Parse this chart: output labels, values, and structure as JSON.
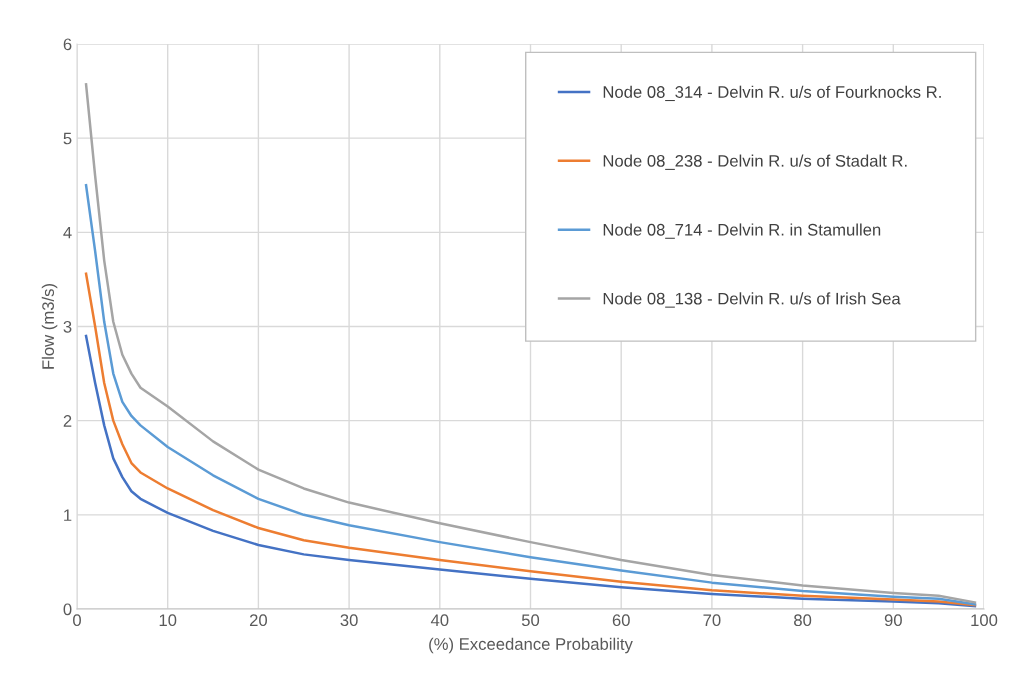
{
  "chart_data": {
    "type": "line",
    "xlabel": "(%) Exceedance Probability",
    "ylabel": "Flow (m3/s)",
    "x": [
      1,
      2,
      3,
      4,
      5,
      6,
      7,
      10,
      15,
      20,
      25,
      30,
      40,
      50,
      60,
      70,
      80,
      90,
      95,
      99
    ],
    "series": [
      {
        "name": "Node 08_314 - Delvin R. u/s of Fourknocks R.",
        "color": "#4472c4",
        "values": [
          2.9,
          2.4,
          1.95,
          1.6,
          1.4,
          1.25,
          1.17,
          1.02,
          0.83,
          0.68,
          0.58,
          0.52,
          0.42,
          0.32,
          0.23,
          0.16,
          0.11,
          0.08,
          0.06,
          0.03
        ]
      },
      {
        "name": "Node 08_238 - Delvin R. u/s of Stadalt R.",
        "color": "#ed7d31",
        "values": [
          3.56,
          3.0,
          2.4,
          2.0,
          1.75,
          1.55,
          1.45,
          1.28,
          1.05,
          0.86,
          0.73,
          0.65,
          0.52,
          0.4,
          0.29,
          0.2,
          0.14,
          0.1,
          0.08,
          0.04
        ]
      },
      {
        "name": "Node 08_714 - Delvin R. in Stamullen",
        "color": "#5b9bd5",
        "values": [
          4.5,
          3.8,
          3.05,
          2.5,
          2.2,
          2.05,
          1.95,
          1.72,
          1.42,
          1.17,
          1.0,
          0.89,
          0.71,
          0.55,
          0.41,
          0.28,
          0.19,
          0.13,
          0.11,
          0.05
        ]
      },
      {
        "name": "Node 08_138 - Delvin R. u/s of Irish Sea",
        "color": "#a5a5a5",
        "values": [
          5.57,
          4.6,
          3.7,
          3.05,
          2.7,
          2.5,
          2.35,
          2.15,
          1.78,
          1.48,
          1.28,
          1.13,
          0.91,
          0.71,
          0.52,
          0.36,
          0.25,
          0.17,
          0.14,
          0.07
        ]
      }
    ],
    "xlim": [
      0,
      100
    ],
    "xticks": [
      0,
      10,
      20,
      30,
      40,
      50,
      60,
      70,
      80,
      90,
      100
    ],
    "ylim": [
      0,
      6
    ],
    "yticks": [
      0,
      1,
      2,
      3,
      4,
      5,
      6
    ],
    "grid": true,
    "legend": "top right",
    "marker": "none",
    "line_style": "solid"
  }
}
